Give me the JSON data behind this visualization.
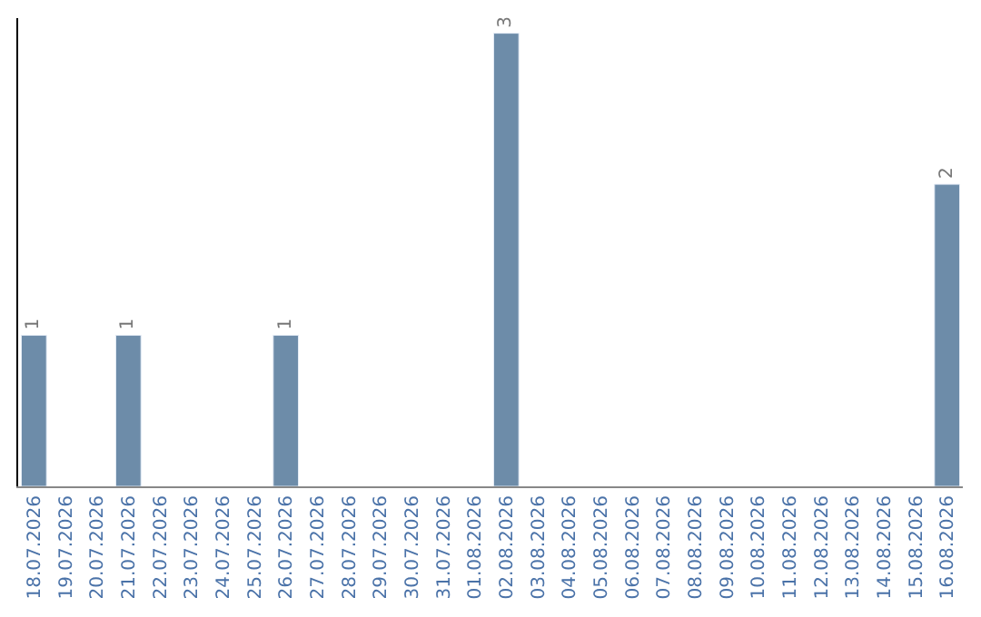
{
  "chart_data": {
    "type": "bar",
    "categories": [
      "18.07.2026",
      "19.07.2026",
      "20.07.2026",
      "21.07.2026",
      "22.07.2026",
      "23.07.2026",
      "24.07.2026",
      "25.07.2026",
      "26.07.2026",
      "27.07.2026",
      "28.07.2026",
      "29.07.2026",
      "30.07.2026",
      "31.07.2026",
      "01.08.2026",
      "02.08.2026",
      "03.08.2026",
      "04.08.2026",
      "05.08.2026",
      "06.08.2026",
      "07.08.2026",
      "08.08.2026",
      "09.08.2026",
      "10.08.2026",
      "11.08.2026",
      "12.08.2026",
      "13.08.2026",
      "14.08.2026",
      "15.08.2026",
      "16.08.2026"
    ],
    "values": [
      1,
      null,
      null,
      1,
      null,
      null,
      null,
      null,
      1,
      null,
      null,
      null,
      null,
      null,
      null,
      3,
      null,
      null,
      null,
      null,
      null,
      null,
      null,
      null,
      null,
      null,
      null,
      null,
      null,
      2
    ],
    "color": "#6d8ca9",
    "ylim": [
      0,
      3.1
    ],
    "data_labels": true,
    "tick_labels": "x"
  }
}
